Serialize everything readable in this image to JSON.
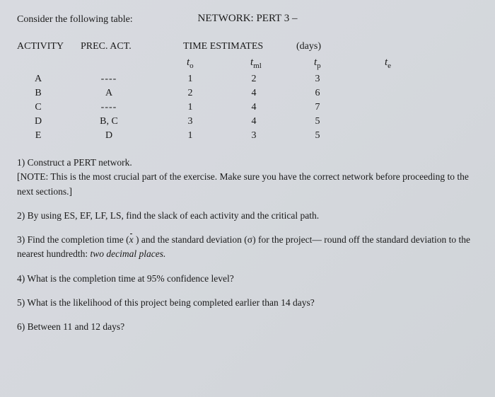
{
  "header": {
    "title": "NETWORK: PERT 3 –",
    "consider": "Consider the following table:"
  },
  "columns": {
    "activity": "ACTIVITY",
    "prec": "PREC. ACT.",
    "time": "TIME   ESTIMATES",
    "days": "(days)"
  },
  "symbols": {
    "to": "to",
    "tml": "tml",
    "tp": "tp",
    "te": "te"
  },
  "rows": [
    {
      "act": "A",
      "prec": "----",
      "to": "1",
      "tml": "2",
      "tp": "3"
    },
    {
      "act": "B",
      "prec": "A",
      "to": "2",
      "tml": "4",
      "tp": "6"
    },
    {
      "act": "C",
      "prec": "----",
      "to": "1",
      "tml": "4",
      "tp": "7"
    },
    {
      "act": "D",
      "prec": "B, C",
      "to": "3",
      "tml": "4",
      "tp": "5"
    },
    {
      "act": "E",
      "prec": "D",
      "to": "1",
      "tml": "3",
      "tp": "5"
    }
  ],
  "questions": {
    "q1a": "1) Construct a PERT network.",
    "q1b": "[NOTE: This is the most crucial part of the exercise. Make sure you have the correct network before proceeding to the next sections.]",
    "q2": "2) By using ES, EF, LF, LS, find the slack of each activity and the critical path.",
    "q3a": "3) Find the completion time (",
    "q3b": " )  and the standard deviation (σ) for the project— round off the standard deviation to the nearest hundredth: ",
    "q3c": "two",
    "q3d": " decimal places.",
    "q4": "4) What is the completion time at 95% confidence level?",
    "q5": "5) What is the likelihood of this project being completed earlier than 14 days?",
    "q6": "6) Between 11 and 12 days?"
  }
}
